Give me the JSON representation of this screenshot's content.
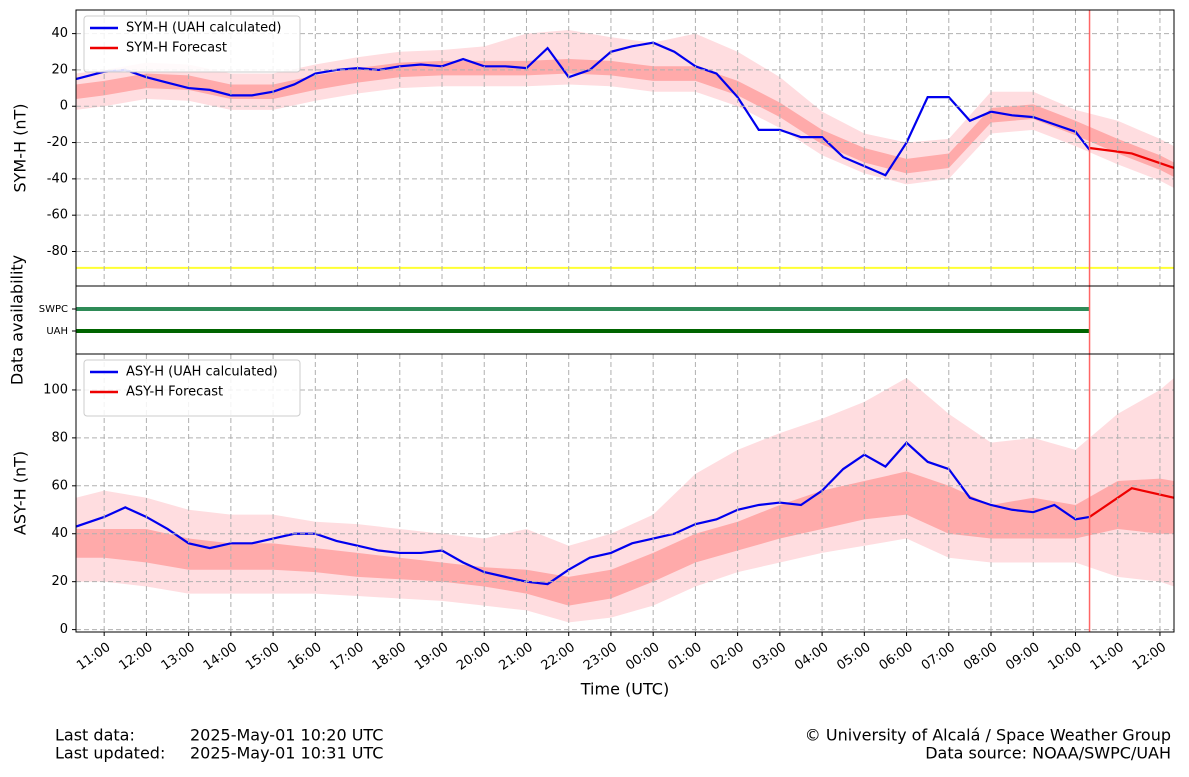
{
  "chart_data": [
    {
      "type": "line",
      "ylabel": "SYM-H (nT)",
      "ylim": [
        -99,
        53
      ],
      "yticks": [
        -80,
        -60,
        -40,
        -20,
        0,
        20,
        40
      ],
      "grid": true,
      "legend": "upper left",
      "hline": {
        "value": -89,
        "color": "#ffff33"
      },
      "bands": [
        {
          "color": "#ffdde0",
          "x": [
            10.333,
            11,
            12,
            13,
            14,
            15,
            16,
            17,
            18,
            19,
            20,
            21,
            22,
            23,
            24,
            25,
            26,
            27,
            28,
            29,
            30,
            31,
            32,
            33,
            34,
            35,
            36,
            36.333
          ],
          "lower": [
            -2,
            0,
            4,
            3,
            -2,
            -2,
            3,
            7,
            10,
            11,
            11,
            11,
            12,
            11,
            8,
            8,
            0,
            -12,
            -27,
            -37,
            -43,
            -40,
            -15,
            -13,
            -22,
            -32,
            -41,
            -45
          ],
          "upper": [
            18,
            20,
            24,
            23,
            18,
            18,
            23,
            27,
            30,
            31,
            33,
            40,
            42,
            38,
            35,
            40,
            30,
            16,
            -3,
            -15,
            -20,
            -18,
            8,
            8,
            -2,
            -8,
            -18,
            -22
          ]
        },
        {
          "color": "#ffaaaa",
          "x": [
            10.333,
            11,
            12,
            13,
            14,
            15,
            16,
            17,
            18,
            19,
            20,
            21,
            22,
            23,
            24,
            25,
            26,
            27,
            28,
            29,
            30,
            31,
            32,
            33,
            34,
            35,
            36,
            36.333
          ],
          "lower": [
            4,
            6,
            10,
            9,
            4,
            4,
            9,
            13,
            16,
            17,
            17,
            17,
            18,
            17,
            14,
            14,
            6,
            -6,
            -21,
            -31,
            -37,
            -34,
            -9,
            -7,
            -16,
            -26,
            -35,
            -39
          ],
          "upper": [
            12,
            14,
            18,
            17,
            12,
            12,
            17,
            21,
            24,
            25,
            25,
            25,
            26,
            25,
            22,
            22,
            14,
            2,
            -13,
            -23,
            -29,
            -26,
            -1,
            1,
            -8,
            -18,
            -27,
            -31
          ]
        }
      ],
      "series": [
        {
          "name": "SYM-H (UAH calculated)",
          "color": "#0000ee",
          "x": [
            10.333,
            11,
            11.5,
            12,
            12.5,
            13,
            13.5,
            14,
            14.5,
            15,
            15.5,
            16,
            16.5,
            17,
            17.5,
            18,
            18.5,
            19,
            19.5,
            20,
            20.5,
            21,
            21.5,
            22,
            22.5,
            23,
            23.5,
            24,
            24.5,
            25,
            25.5,
            26,
            26.5,
            27,
            27.5,
            28,
            28.5,
            29,
            29.5,
            30,
            30.5,
            31,
            31.5,
            32,
            32.5,
            33,
            33.5,
            34,
            34.333
          ],
          "values": [
            15,
            19,
            20,
            16,
            13,
            10,
            9,
            6,
            6,
            8,
            12,
            18,
            20,
            21,
            20,
            22,
            23,
            22,
            26,
            22,
            22,
            21,
            32,
            16,
            20,
            30,
            33,
            35,
            30,
            22,
            18,
            5,
            -13,
            -13,
            -17,
            -17,
            -28,
            -33,
            -38,
            -20,
            5,
            5,
            -8,
            -3,
            -5,
            -6,
            -10,
            -14,
            -24
          ]
        },
        {
          "name": "SYM-H Forecast",
          "color": "#ee0000",
          "x": [
            34.333,
            35.333,
            36.333
          ],
          "values": [
            -23,
            -26,
            -34
          ]
        }
      ]
    },
    {
      "type": "availability",
      "ylabel": "Data availability",
      "series": [
        {
          "name": "SWPC",
          "color": "#2e8b57",
          "x": [
            10.333,
            34.333
          ]
        },
        {
          "name": "UAH",
          "color": "#006400",
          "x": [
            10.333,
            34.333
          ]
        }
      ]
    },
    {
      "type": "line",
      "ylabel": "ASY-H (nT)",
      "xlabel": "Time (UTC)",
      "ylim": [
        -1,
        115
      ],
      "yticks": [
        0,
        20,
        40,
        60,
        80,
        100
      ],
      "grid": true,
      "legend": "upper left",
      "xlim": [
        10.333,
        36.333
      ],
      "vline": {
        "value": 34.333,
        "color": "#ff6666"
      },
      "xticks": [
        {
          "value": 11,
          "label": "11:00"
        },
        {
          "value": 12,
          "label": "12:00"
        },
        {
          "value": 13,
          "label": "13:00"
        },
        {
          "value": 14,
          "label": "14:00"
        },
        {
          "value": 15,
          "label": "15:00"
        },
        {
          "value": 16,
          "label": "16:00"
        },
        {
          "value": 17,
          "label": "17:00"
        },
        {
          "value": 18,
          "label": "18:00"
        },
        {
          "value": 19,
          "label": "19:00"
        },
        {
          "value": 20,
          "label": "20:00"
        },
        {
          "value": 21,
          "label": "21:00"
        },
        {
          "value": 22,
          "label": "22:00"
        },
        {
          "value": 23,
          "label": "23:00"
        },
        {
          "value": 24,
          "label": "00:00"
        },
        {
          "value": 25,
          "label": "01:00"
        },
        {
          "value": 26,
          "label": "02:00"
        },
        {
          "value": 27,
          "label": "03:00"
        },
        {
          "value": 28,
          "label": "04:00"
        },
        {
          "value": 29,
          "label": "05:00"
        },
        {
          "value": 30,
          "label": "06:00"
        },
        {
          "value": 31,
          "label": "07:00"
        },
        {
          "value": 32,
          "label": "08:00"
        },
        {
          "value": 33,
          "label": "09:00"
        },
        {
          "value": 34,
          "label": "10:00"
        },
        {
          "value": 35,
          "label": "11:00"
        },
        {
          "value": 36,
          "label": "12:00"
        }
      ],
      "bands": [
        {
          "color": "#ffdde0",
          "x": [
            10.333,
            11,
            12,
            13,
            14,
            15,
            16,
            17,
            18,
            19,
            20,
            21,
            22,
            23,
            24,
            25,
            26,
            27,
            28,
            29,
            30,
            31,
            32,
            33,
            34,
            35,
            36,
            36.333
          ],
          "lower": [
            20,
            20,
            18,
            15,
            15,
            15,
            15,
            14,
            13,
            12,
            10,
            8,
            3,
            5,
            10,
            18,
            24,
            28,
            32,
            35,
            38,
            30,
            28,
            28,
            28,
            22,
            20,
            18
          ],
          "upper": [
            55,
            58,
            55,
            50,
            48,
            48,
            45,
            44,
            42,
            40,
            38,
            42,
            35,
            40,
            48,
            65,
            75,
            82,
            88,
            95,
            105,
            90,
            78,
            80,
            75,
            90,
            100,
            105
          ]
        },
        {
          "color": "#ffaaaa",
          "x": [
            10.333,
            11,
            12,
            13,
            14,
            15,
            16,
            17,
            18,
            19,
            20,
            21,
            22,
            23,
            24,
            25,
            26,
            27,
            28,
            29,
            30,
            31,
            32,
            33,
            34,
            35,
            36,
            36.333
          ],
          "lower": [
            30,
            30,
            28,
            25,
            25,
            25,
            24,
            22,
            21,
            20,
            18,
            15,
            10,
            13,
            20,
            28,
            33,
            38,
            42,
            46,
            48,
            40,
            38,
            38,
            38,
            42,
            40,
            40
          ],
          "upper": [
            42,
            42,
            42,
            38,
            36,
            36,
            34,
            32,
            30,
            28,
            26,
            25,
            22,
            25,
            32,
            40,
            45,
            52,
            58,
            62,
            66,
            60,
            52,
            55,
            52,
            62,
            63,
            62
          ]
        }
      ],
      "series": [
        {
          "name": "ASY-H (UAH calculated)",
          "color": "#0000ee",
          "x": [
            10.333,
            11,
            11.5,
            12,
            12.5,
            13,
            13.5,
            14,
            14.5,
            15,
            15.5,
            16,
            16.5,
            17,
            17.5,
            18,
            18.5,
            19,
            19.5,
            20,
            20.5,
            21,
            21.5,
            22,
            22.5,
            23,
            23.5,
            24,
            24.5,
            25,
            25.5,
            26,
            26.5,
            27,
            27.5,
            28,
            28.5,
            29,
            29.5,
            30,
            30.5,
            31,
            31.5,
            32,
            32.5,
            33,
            33.5,
            34,
            34.333
          ],
          "values": [
            43,
            47,
            51,
            47,
            42,
            36,
            34,
            36,
            36,
            38,
            40,
            40,
            37,
            35,
            33,
            32,
            32,
            33,
            28,
            24,
            22,
            20,
            19,
            25,
            30,
            32,
            36,
            38,
            40,
            44,
            46,
            50,
            52,
            53,
            52,
            58,
            67,
            73,
            68,
            78,
            70,
            67,
            55,
            52,
            50,
            49,
            52,
            46,
            47
          ]
        },
        {
          "name": "ASY-H Forecast",
          "color": "#ee0000",
          "x": [
            34.333,
            35.333,
            36.333
          ],
          "values": [
            47,
            59,
            55
          ]
        }
      ]
    }
  ],
  "footer": {
    "last_data_label": "Last data:",
    "last_data": "2025-May-01 10:20 UTC",
    "last_updated_label": "Last updated:",
    "last_updated": "2025-May-01 10:31 UTC",
    "credit": "© University of Alcalá / Space Weather Group",
    "source": "Data source: NOAA/SWPC/UAH"
  }
}
